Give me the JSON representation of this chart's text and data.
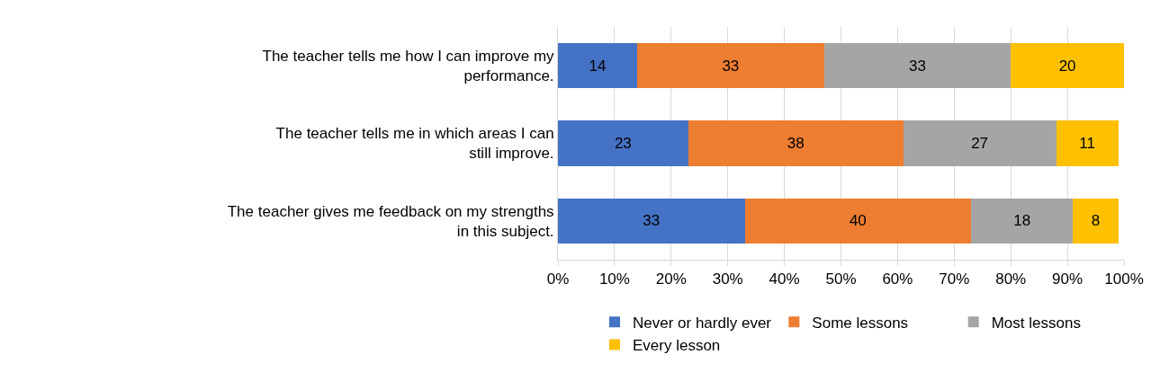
{
  "chart_data": {
    "type": "bar",
    "orientation": "horizontal",
    "stacked": true,
    "data_labels": true,
    "categories": [
      "The teacher tells me how I can improve my performance.",
      "The teacher tells me in which areas I can still improve.",
      "The teacher gives me feedback on my strengths in this subject."
    ],
    "series": [
      {
        "name": "Never or hardly ever",
        "color": "#4472c4",
        "values": [
          14,
          23,
          33
        ]
      },
      {
        "name": "Some lessons",
        "color": "#ed7d31",
        "values": [
          33,
          38,
          40
        ]
      },
      {
        "name": "Most lessons",
        "color": "#a5a5a5",
        "values": [
          33,
          27,
          18
        ]
      },
      {
        "name": "Every lesson",
        "color": "#ffc000",
        "values": [
          20,
          11,
          8
        ]
      }
    ],
    "xlim": [
      0,
      100
    ],
    "xticks": [
      {
        "value": 0,
        "label": "0%"
      },
      {
        "value": 10,
        "label": "10%"
      },
      {
        "value": 20,
        "label": "20%"
      },
      {
        "value": 30,
        "label": "30%"
      },
      {
        "value": 40,
        "label": "40%"
      },
      {
        "value": 50,
        "label": "50%"
      },
      {
        "value": 60,
        "label": "60%"
      },
      {
        "value": 70,
        "label": "70%"
      },
      {
        "value": 80,
        "label": "80%"
      },
      {
        "value": 90,
        "label": "90%"
      },
      {
        "value": 100,
        "label": "100%"
      }
    ],
    "grid": "x",
    "legend": "bottom"
  }
}
